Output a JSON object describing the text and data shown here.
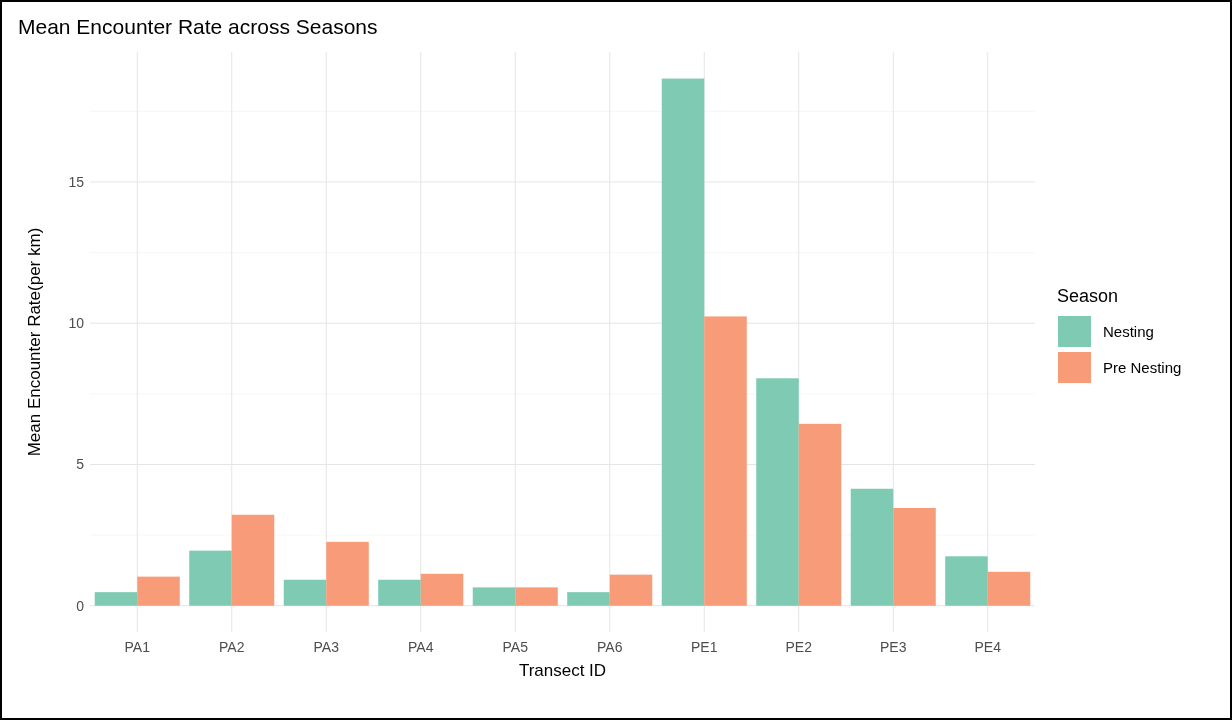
{
  "chart_data": {
    "type": "bar",
    "title": "Mean Encounter Rate across Seasons",
    "xlabel": "Transect ID",
    "ylabel": "Mean Encounter Rate(per km)",
    "legend_title": "Season",
    "categories": [
      "PA1",
      "PA2",
      "PA3",
      "PA4",
      "PA5",
      "PA6",
      "PE1",
      "PE2",
      "PE3",
      "PE4"
    ],
    "series": [
      {
        "name": "Nesting",
        "color": "#7ecab2",
        "values": [
          0.48,
          1.95,
          0.92,
          0.92,
          0.65,
          0.48,
          18.66,
          8.05,
          4.14,
          1.75
        ]
      },
      {
        "name": "Pre Nesting",
        "color": "#f79b79",
        "values": [
          1.03,
          3.22,
          2.26,
          1.13,
          0.65,
          1.1,
          10.24,
          6.44,
          3.46,
          1.2
        ]
      }
    ],
    "ylim": [
      -0.93,
      19.6
    ],
    "yticks": [
      0,
      5,
      10,
      15
    ],
    "grid": true,
    "legend": "right"
  }
}
